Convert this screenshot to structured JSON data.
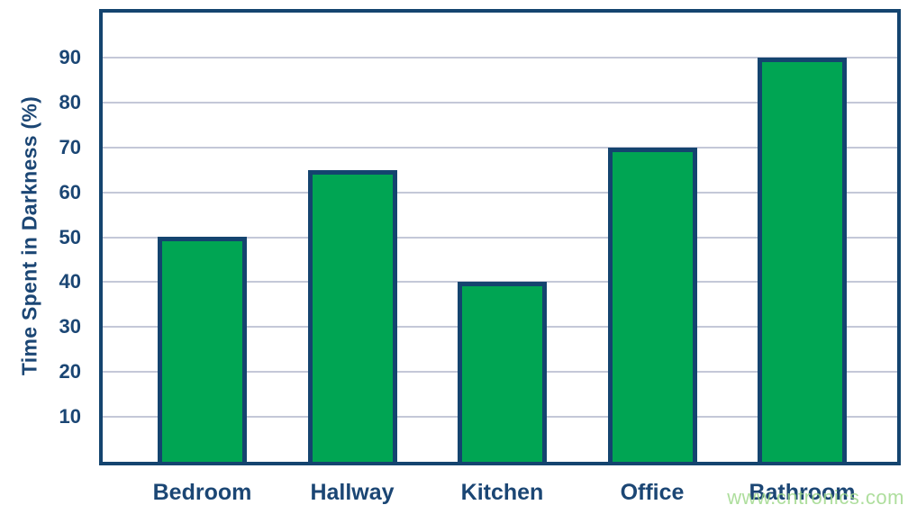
{
  "chart_data": {
    "type": "bar",
    "categories": [
      "Bedroom",
      "Hallway",
      "Kitchen",
      "Office",
      "Bathroom"
    ],
    "values": [
      50,
      65,
      40,
      70,
      90
    ],
    "title": "",
    "xlabel": "",
    "ylabel": "Time Spent in Darkness (%)",
    "ylim": [
      0,
      100
    ],
    "yticks": [
      10,
      20,
      30,
      40,
      50,
      60,
      70,
      80,
      90
    ],
    "grid": true,
    "legend": "none",
    "colors": {
      "bar_fill": "#00a553",
      "bar_border": "#14446f",
      "frame_border": "#14446f",
      "gridline": "#c4c8d8",
      "text": "#1b4674",
      "background": "#ffffff"
    }
  },
  "watermark": {
    "text": "www.cntronics.com",
    "color": "rgba(160, 216, 140, 0.85)"
  }
}
